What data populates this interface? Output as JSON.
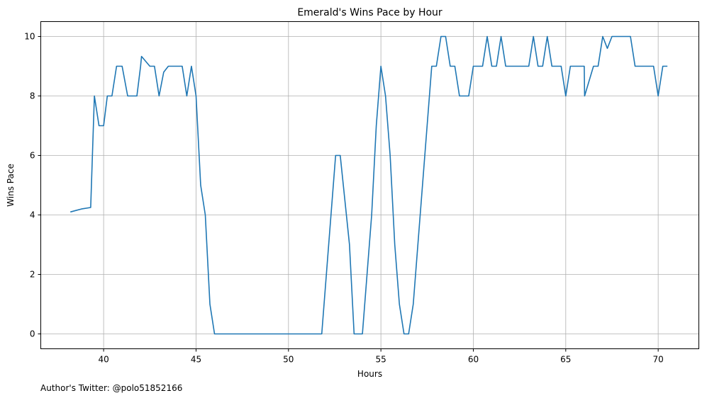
{
  "chart_data": {
    "type": "line",
    "title": "Emerald's Wins Pace by Hour",
    "xlabel": "Hours",
    "ylabel": "Wins Pace",
    "xlim": [
      36.6,
      72.2
    ],
    "ylim": [
      -0.5,
      10.5
    ],
    "xticks": [
      40,
      45,
      50,
      55,
      60,
      65,
      70
    ],
    "yticks": [
      0,
      2,
      4,
      6,
      8,
      10
    ],
    "grid": true,
    "series": [
      {
        "color": "#1f77b4",
        "x": [
          38.2,
          38.5,
          38.8,
          39.3,
          39.5,
          39.75,
          40.0,
          40.2,
          40.45,
          40.7,
          41.0,
          41.3,
          41.8,
          42.0,
          42.05,
          42.5,
          42.75,
          43.0,
          43.25,
          43.5,
          44.0,
          44.25,
          44.5,
          44.75,
          45.0,
          45.25,
          45.5,
          45.75,
          46.0,
          51.8,
          52.55,
          52.8,
          53.3,
          53.55,
          54.0,
          54.5,
          54.75,
          55.0,
          55.25,
          55.5,
          55.75,
          56.0,
          56.25,
          56.5,
          56.75,
          57.0,
          57.5,
          57.75,
          58.0,
          58.25,
          58.5,
          58.75,
          59.0,
          59.25,
          59.5,
          59.75,
          60.0,
          60.25,
          60.5,
          60.75,
          61.0,
          61.25,
          61.5,
          61.75,
          62.0,
          62.5,
          63.0,
          63.25,
          63.5,
          63.75,
          64.0,
          64.25,
          64.5,
          64.75,
          65.0,
          65.25,
          65.5,
          66.0,
          66.02,
          66.5,
          66.75,
          67.0,
          67.25,
          67.5,
          68.0,
          68.25,
          68.5,
          68.75,
          69.75,
          70.0,
          70.25,
          70.5
        ],
        "y": [
          4.1,
          4.15,
          4.2,
          4.25,
          8,
          7,
          7,
          8,
          8,
          9,
          9,
          8,
          8,
          9,
          9.33,
          9,
          9,
          8,
          8.8,
          9,
          9,
          9,
          8,
          9,
          8,
          5,
          4,
          1,
          0,
          0,
          6,
          6,
          3,
          0,
          0,
          4,
          7,
          9,
          8,
          6,
          3,
          1,
          0,
          0,
          1,
          3,
          7,
          9,
          9,
          10,
          10,
          9,
          9,
          8,
          8,
          8,
          9,
          9,
          9,
          10,
          9,
          9,
          10,
          9,
          9,
          9,
          9,
          10,
          9,
          9,
          10,
          9,
          9,
          9,
          8,
          9,
          9,
          9,
          8,
          9,
          9,
          10,
          9.6,
          10,
          10,
          10,
          10,
          9,
          9,
          8,
          9,
          9
        ]
      }
    ]
  },
  "footnote": "Author's Twitter: @polo51852166"
}
